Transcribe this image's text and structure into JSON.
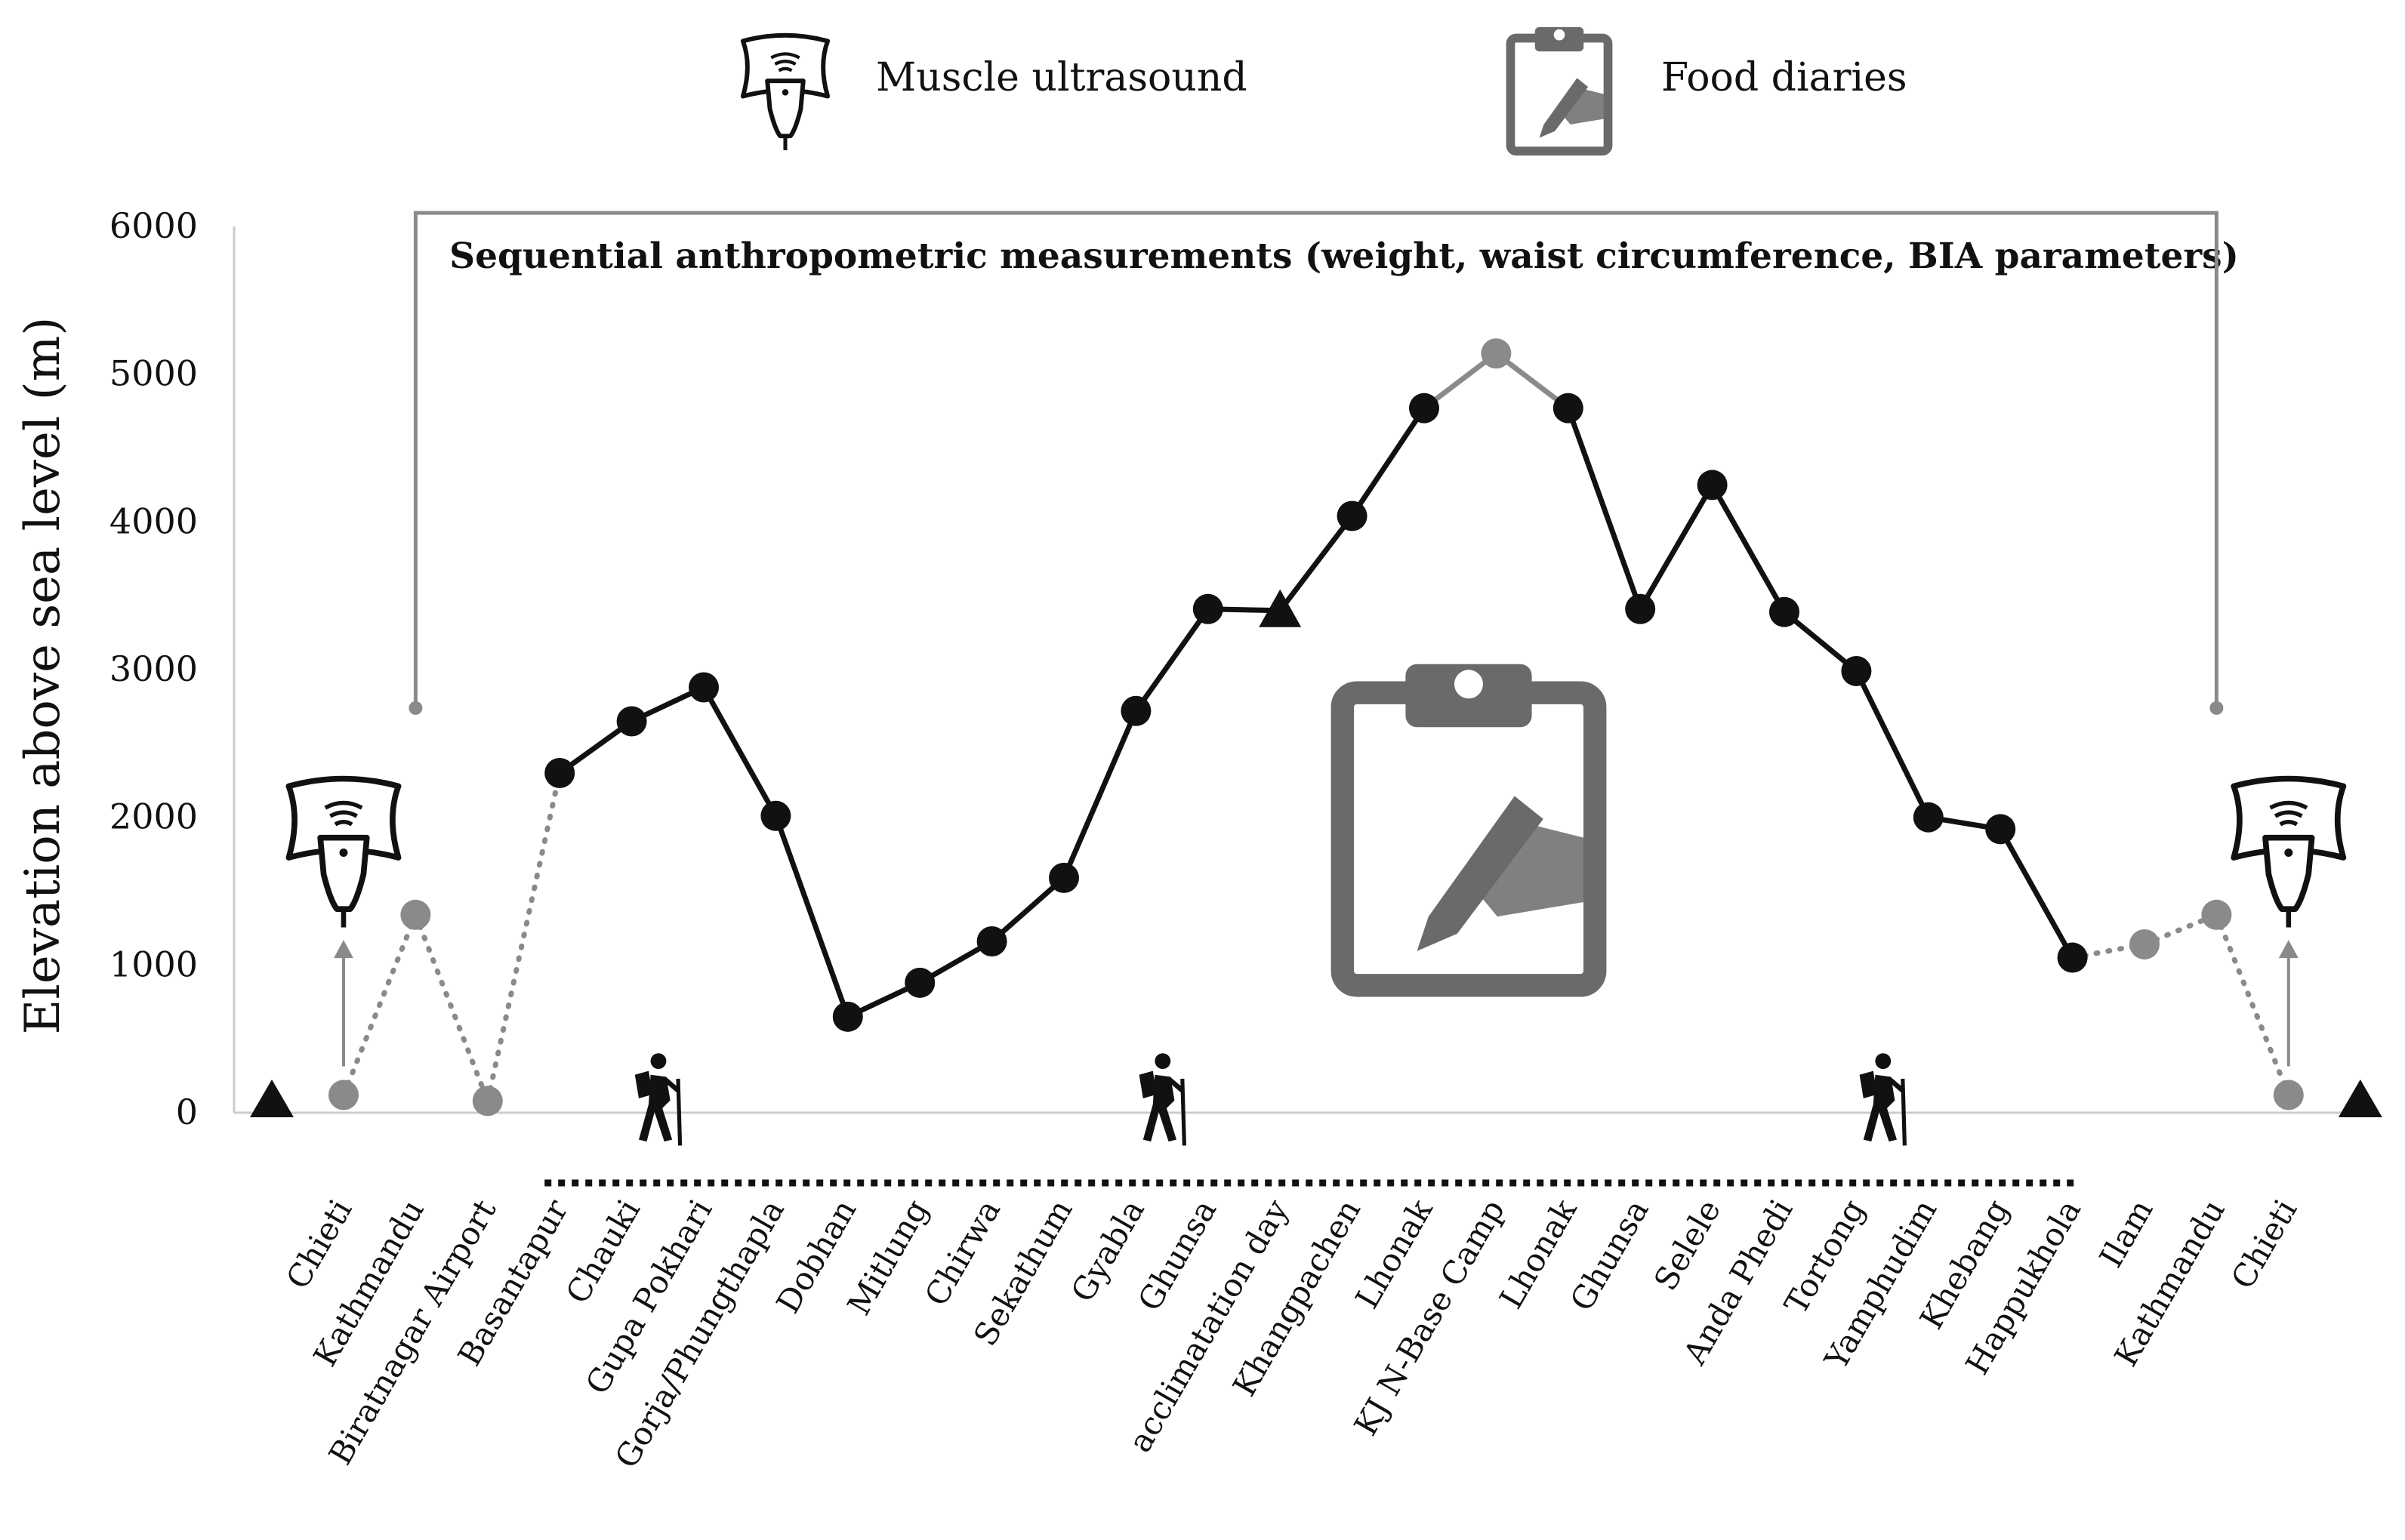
{
  "legend": {
    "ultrasound_label": "Muscle ultrasound",
    "ultrasound_icon": "ultrasound-probe-icon",
    "diary_label": "Food diaries",
    "diary_icon": "clipboard-writing-icon"
  },
  "bracket_label": "Sequential anthropometric measurements (weight, waist circumference, BIA parameters)",
  "trekking_icon": "hiker-icon",
  "colors": {
    "black": "#111111",
    "gray": "#8a8a8a",
    "icon_gray": "#6a6a6a",
    "axis": "#cccccc"
  },
  "chart_data": {
    "type": "line",
    "ylabel": "Elevation above sea level (m)",
    "xlabel": "",
    "ylim": [
      0,
      6000
    ],
    "yticks": [
      0,
      1000,
      2000,
      3000,
      4000,
      5000,
      6000
    ],
    "categories": [
      "Chieti",
      "Kathmandu",
      "Biratnagar Airport",
      "Basantapur",
      "Chauki",
      "Gupa Pokhari",
      "Gorja/Phungthapla",
      "Dobhan",
      "Mitlung",
      "Chirwa",
      "Sekathum",
      "Gyabla",
      "Ghunsa",
      "acclimatation day",
      "Khangpachen",
      "Lhonak",
      "KJ N-Base Camp",
      "Lhonak",
      "Ghunsa",
      "Selele",
      "Anda Phedi",
      "Tortong",
      "Yamphudim",
      "Khebang",
      "Happukhola",
      "Ilam",
      "Kathmandu",
      "Chieti"
    ],
    "values": [
      120,
      1340,
      80,
      2300,
      2650,
      2880,
      2010,
      650,
      880,
      1160,
      1590,
      2720,
      3410,
      3400,
      4040,
      4770,
      5140,
      4770,
      3410,
      4250,
      3390,
      2990,
      2000,
      1920,
      1050,
      1140,
      1340,
      120
    ],
    "marker_types": [
      "gray-circle",
      "gray-circle",
      "gray-circle",
      "black-circle",
      "black-circle",
      "black-circle",
      "black-circle",
      "black-circle",
      "black-circle",
      "black-circle",
      "black-circle",
      "black-circle",
      "black-circle",
      "black-triangle",
      "black-circle",
      "black-circle",
      "gray-circle",
      "black-circle",
      "black-circle",
      "black-circle",
      "black-circle",
      "black-circle",
      "black-circle",
      "black-circle",
      "black-circle",
      "gray-circle",
      "gray-circle",
      "gray-circle"
    ],
    "segment_styles": [
      "gray-dotted",
      "gray-dotted",
      "gray-dotted",
      "black-solid",
      "black-solid",
      "black-solid",
      "black-solid",
      "black-solid",
      "black-solid",
      "black-solid",
      "black-solid",
      "black-solid",
      "black-solid",
      "black-solid",
      "black-solid",
      "gray-solid",
      "gray-solid",
      "black-solid",
      "black-solid",
      "black-solid",
      "black-solid",
      "black-solid",
      "black-solid",
      "black-solid",
      "gray-dotted",
      "gray-dotted",
      "gray-dotted"
    ],
    "boundary_markers": [
      {
        "position": "before-first",
        "value": 0
      },
      {
        "position": "after-last",
        "value": 0
      }
    ],
    "ultrasound_at": [
      0,
      27
    ],
    "trek_span": [
      3,
      24
    ],
    "hiker_icons_at": [
      5,
      12,
      22
    ],
    "bracket_span": [
      1,
      26
    ],
    "bracket_value": 6000,
    "legend_placement": "top-center",
    "grid": false
  }
}
